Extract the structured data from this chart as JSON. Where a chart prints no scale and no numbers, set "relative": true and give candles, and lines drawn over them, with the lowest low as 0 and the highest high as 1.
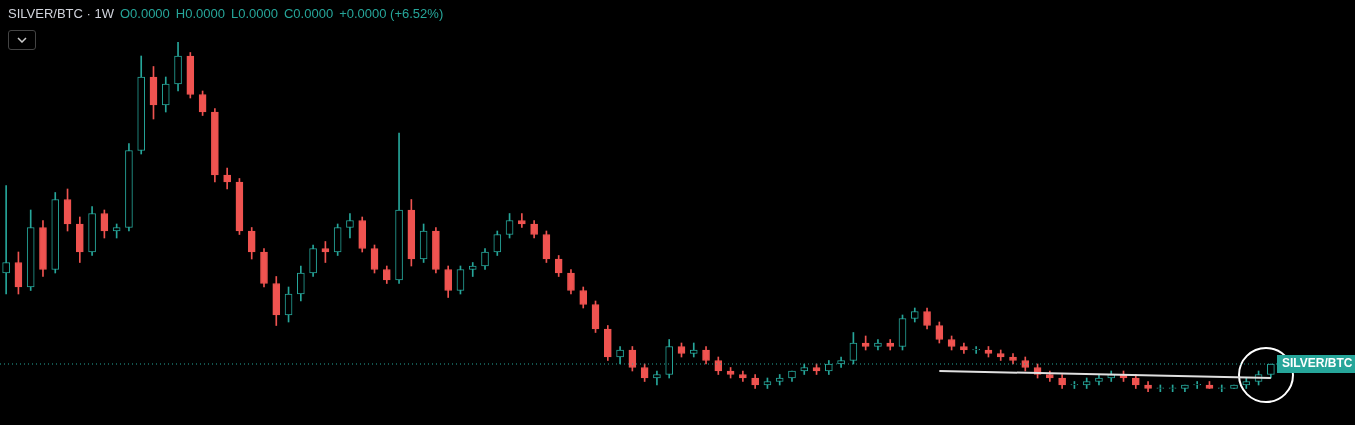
{
  "chart_data": {
    "type": "candlestick",
    "title": "SILVER/BTC · 1W",
    "relative": true,
    "legend": false,
    "annotations": [
      "O0.0000",
      "H0.0000",
      "L0.0000",
      "C0.0000",
      "+0.0000 (+6.52%)"
    ],
    "colors": [
      "#26a69a",
      "#ef5350"
    ],
    "categories": [
      null,
      null,
      null,
      null,
      null,
      null,
      null,
      null,
      null,
      null,
      null,
      null,
      null,
      null,
      null,
      null,
      null,
      null,
      null,
      null,
      null,
      null,
      null,
      null,
      null,
      null,
      null,
      null,
      null,
      null,
      null,
      null,
      null,
      null,
      null,
      null,
      null,
      null,
      null,
      null,
      null,
      null,
      null,
      null,
      null,
      null,
      null,
      null,
      null,
      null,
      null,
      null,
      null,
      null,
      null,
      null,
      null,
      null,
      null,
      null,
      null,
      null,
      null,
      null,
      null,
      null,
      null,
      null,
      null,
      null,
      null,
      null,
      null,
      null,
      null,
      null,
      null,
      null,
      null,
      null,
      null,
      null,
      null,
      null,
      null,
      null,
      null,
      null,
      null,
      null,
      null,
      null,
      null,
      null,
      null,
      null,
      null,
      null,
      null,
      null,
      null,
      null,
      null,
      null
    ],
    "series": [
      {
        "ohlc": [
          [
            0.34,
            0.59,
            0.28,
            0.37
          ],
          [
            0.37,
            0.4,
            0.28,
            0.3
          ],
          [
            0.3,
            0.52,
            0.29,
            0.47
          ],
          [
            0.47,
            0.49,
            0.33,
            0.35
          ],
          [
            0.35,
            0.57,
            0.34,
            0.55
          ],
          [
            0.55,
            0.58,
            0.46,
            0.48
          ],
          [
            0.48,
            0.5,
            0.37,
            0.4
          ],
          [
            0.4,
            0.53,
            0.39,
            0.51
          ],
          [
            0.51,
            0.52,
            0.44,
            0.46
          ],
          [
            0.46,
            0.48,
            0.44,
            0.47
          ],
          [
            0.47,
            0.71,
            0.46,
            0.69
          ],
          [
            0.69,
            0.96,
            0.68,
            0.9
          ],
          [
            0.9,
            0.93,
            0.78,
            0.82
          ],
          [
            0.82,
            0.9,
            0.8,
            0.88
          ],
          [
            0.88,
            1.0,
            0.86,
            0.96
          ],
          [
            0.96,
            0.97,
            0.84,
            0.85
          ],
          [
            0.85,
            0.86,
            0.79,
            0.8
          ],
          [
            0.8,
            0.81,
            0.6,
            0.62
          ],
          [
            0.62,
            0.64,
            0.58,
            0.6
          ],
          [
            0.6,
            0.61,
            0.45,
            0.46
          ],
          [
            0.46,
            0.47,
            0.38,
            0.4
          ],
          [
            0.4,
            0.41,
            0.3,
            0.31
          ],
          [
            0.31,
            0.33,
            0.19,
            0.22
          ],
          [
            0.22,
            0.3,
            0.2,
            0.28
          ],
          [
            0.28,
            0.36,
            0.26,
            0.34
          ],
          [
            0.34,
            0.42,
            0.33,
            0.41
          ],
          [
            0.41,
            0.43,
            0.37,
            0.4
          ],
          [
            0.4,
            0.48,
            0.39,
            0.47
          ],
          [
            0.47,
            0.51,
            0.44,
            0.49
          ],
          [
            0.49,
            0.5,
            0.4,
            0.41
          ],
          [
            0.41,
            0.42,
            0.34,
            0.35
          ],
          [
            0.35,
            0.36,
            0.31,
            0.32
          ],
          [
            0.32,
            0.74,
            0.31,
            0.52
          ],
          [
            0.52,
            0.55,
            0.36,
            0.38
          ],
          [
            0.38,
            0.48,
            0.37,
            0.46
          ],
          [
            0.46,
            0.47,
            0.34,
            0.35
          ],
          [
            0.35,
            0.36,
            0.27,
            0.29
          ],
          [
            0.29,
            0.36,
            0.28,
            0.35
          ],
          [
            0.35,
            0.37,
            0.33,
            0.36
          ],
          [
            0.36,
            0.41,
            0.35,
            0.4
          ],
          [
            0.4,
            0.46,
            0.39,
            0.45
          ],
          [
            0.45,
            0.51,
            0.44,
            0.49
          ],
          [
            0.49,
            0.51,
            0.47,
            0.48
          ],
          [
            0.48,
            0.49,
            0.44,
            0.45
          ],
          [
            0.45,
            0.46,
            0.37,
            0.38
          ],
          [
            0.38,
            0.39,
            0.33,
            0.34
          ],
          [
            0.34,
            0.35,
            0.28,
            0.29
          ],
          [
            0.29,
            0.3,
            0.24,
            0.25
          ],
          [
            0.25,
            0.26,
            0.17,
            0.18
          ],
          [
            0.18,
            0.19,
            0.09,
            0.1
          ],
          [
            0.1,
            0.13,
            0.08,
            0.12
          ],
          [
            0.12,
            0.13,
            0.06,
            0.07
          ],
          [
            0.07,
            0.08,
            0.03,
            0.04
          ],
          [
            0.04,
            0.06,
            0.02,
            0.05
          ],
          [
            0.05,
            0.15,
            0.04,
            0.13
          ],
          [
            0.13,
            0.14,
            0.1,
            0.11
          ],
          [
            0.11,
            0.14,
            0.1,
            0.12
          ],
          [
            0.12,
            0.13,
            0.08,
            0.09
          ],
          [
            0.09,
            0.1,
            0.05,
            0.06
          ],
          [
            0.06,
            0.07,
            0.04,
            0.05
          ],
          [
            0.05,
            0.06,
            0.03,
            0.04
          ],
          [
            0.04,
            0.05,
            0.01,
            0.02
          ],
          [
            0.02,
            0.04,
            0.01,
            0.03
          ],
          [
            0.03,
            0.05,
            0.02,
            0.04
          ],
          [
            0.04,
            0.06,
            0.03,
            0.06
          ],
          [
            0.06,
            0.08,
            0.05,
            0.07
          ],
          [
            0.07,
            0.08,
            0.05,
            0.06
          ],
          [
            0.06,
            0.09,
            0.05,
            0.08
          ],
          [
            0.08,
            0.1,
            0.07,
            0.09
          ],
          [
            0.09,
            0.17,
            0.08,
            0.14
          ],
          [
            0.14,
            0.16,
            0.12,
            0.13
          ],
          [
            0.13,
            0.15,
            0.12,
            0.14
          ],
          [
            0.14,
            0.15,
            0.12,
            0.13
          ],
          [
            0.13,
            0.22,
            0.12,
            0.21
          ],
          [
            0.21,
            0.24,
            0.2,
            0.23
          ],
          [
            0.23,
            0.24,
            0.18,
            0.19
          ],
          [
            0.19,
            0.2,
            0.14,
            0.15
          ],
          [
            0.15,
            0.16,
            0.12,
            0.13
          ],
          [
            0.13,
            0.14,
            0.11,
            0.12
          ],
          [
            0.12,
            0.13,
            0.11,
            0.12
          ],
          [
            0.12,
            0.13,
            0.1,
            0.11
          ],
          [
            0.11,
            0.12,
            0.09,
            0.1
          ],
          [
            0.1,
            0.11,
            0.08,
            0.09
          ],
          [
            0.09,
            0.1,
            0.06,
            0.07
          ],
          [
            0.07,
            0.08,
            0.04,
            0.05
          ],
          [
            0.05,
            0.06,
            0.03,
            0.04
          ],
          [
            0.04,
            0.05,
            0.01,
            0.02
          ],
          [
            0.02,
            0.03,
            0.01,
            0.02
          ],
          [
            0.02,
            0.04,
            0.01,
            0.03
          ],
          [
            0.03,
            0.05,
            0.02,
            0.04
          ],
          [
            0.04,
            0.06,
            0.03,
            0.05
          ],
          [
            0.05,
            0.06,
            0.03,
            0.04
          ],
          [
            0.04,
            0.05,
            0.01,
            0.02
          ],
          [
            0.02,
            0.03,
            0,
            0.01
          ],
          [
            0.01,
            0.02,
            0,
            0.01
          ],
          [
            0.01,
            0.02,
            0,
            0.01
          ],
          [
            0.01,
            0.02,
            0,
            0.02
          ],
          [
            0.02,
            0.03,
            0.01,
            0.02
          ],
          [
            0.02,
            0.03,
            0.01,
            0.01
          ],
          [
            0.01,
            0.02,
            0,
            0.01
          ],
          [
            0.01,
            0.02,
            0.01,
            0.02
          ],
          [
            0.02,
            0.04,
            0.01,
            0.03
          ],
          [
            0.03,
            0.06,
            0.02,
            0.05
          ],
          [
            0.05,
            0.08,
            0.04,
            0.08
          ]
        ]
      },
      {
        "type": "line",
        "color": "#e0e0e0",
        "values": [
          null,
          null,
          null,
          null,
          null,
          null,
          null,
          null,
          null,
          null,
          null,
          null,
          null,
          null,
          null,
          null,
          null,
          null,
          null,
          null,
          null,
          null,
          null,
          null,
          null,
          null,
          null,
          null,
          null,
          null,
          null,
          null,
          null,
          null,
          null,
          null,
          null,
          null,
          null,
          null,
          null,
          null,
          null,
          null,
          null,
          null,
          null,
          null,
          null,
          null,
          null,
          null,
          null,
          null,
          null,
          null,
          null,
          null,
          null,
          null,
          null,
          null,
          null,
          null,
          null,
          null,
          null,
          null,
          null,
          null,
          null,
          null,
          null,
          null,
          null,
          null,
          0.06,
          null,
          null,
          null,
          null,
          null,
          null,
          null,
          null,
          null,
          null,
          null,
          null,
          null,
          null,
          null,
          null,
          null,
          null,
          null,
          null,
          null,
          null,
          null,
          null,
          null,
          null,
          0.04
        ]
      }
    ],
    "ref_lines": [
      {
        "axis": "y",
        "value": 0.08,
        "label": "SILVER/BTC",
        "color": "#26a69a",
        "line_style": "dotted"
      }
    ]
  }
}
